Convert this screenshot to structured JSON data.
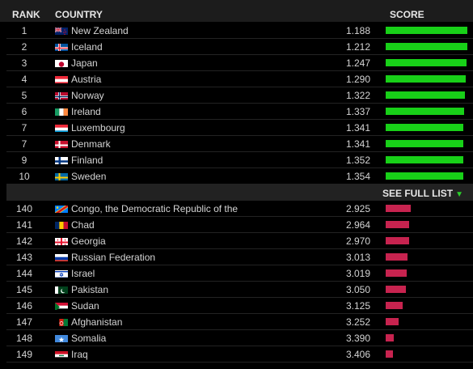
{
  "headers": {
    "rank": "RANK",
    "country": "COUNTRY",
    "score": "SCORE"
  },
  "see_full_list": "SEE FULL LIST",
  "colors": {
    "top_bar": "#18d018",
    "bottom_bar": "#c7234f"
  },
  "top": [
    {
      "rank": "1",
      "country": "New Zealand",
      "score": "1.188",
      "flag": "nz",
      "fill": 1.0
    },
    {
      "rank": "2",
      "country": "Iceland",
      "score": "1.212",
      "flag": "is",
      "fill": 1.0
    },
    {
      "rank": "3",
      "country": "Japan",
      "score": "1.247",
      "flag": "jp",
      "fill": 0.99
    },
    {
      "rank": "4",
      "country": "Austria",
      "score": "1.290",
      "flag": "at",
      "fill": 0.98
    },
    {
      "rank": "5",
      "country": "Norway",
      "score": "1.322",
      "flag": "no",
      "fill": 0.97
    },
    {
      "rank": "6",
      "country": "Ireland",
      "score": "1.337",
      "flag": "ie",
      "fill": 0.96
    },
    {
      "rank": "7",
      "country": "Luxembourg",
      "score": "1.341",
      "flag": "lu",
      "fill": 0.95
    },
    {
      "rank": "7",
      "country": "Denmark",
      "score": "1.341",
      "flag": "dk",
      "fill": 0.95
    },
    {
      "rank": "9",
      "country": "Finland",
      "score": "1.352",
      "flag": "fi",
      "fill": 0.95
    },
    {
      "rank": "10",
      "country": "Sweden",
      "score": "1.354",
      "flag": "se",
      "fill": 0.95
    }
  ],
  "bottom": [
    {
      "rank": "140",
      "country": "Congo, the Democratic Republic of the",
      "score": "2.925",
      "flag": "cd",
      "fill": 0.31
    },
    {
      "rank": "141",
      "country": "Chad",
      "score": "2.964",
      "flag": "td",
      "fill": 0.29
    },
    {
      "rank": "142",
      "country": "Georgia",
      "score": "2.970",
      "flag": "ge",
      "fill": 0.29
    },
    {
      "rank": "143",
      "country": "Russian Federation",
      "score": "3.013",
      "flag": "ru",
      "fill": 0.27
    },
    {
      "rank": "144",
      "country": "Israel",
      "score": "3.019",
      "flag": "il",
      "fill": 0.26
    },
    {
      "rank": "145",
      "country": "Pakistan",
      "score": "3.050",
      "flag": "pk",
      "fill": 0.25
    },
    {
      "rank": "146",
      "country": "Sudan",
      "score": "3.125",
      "flag": "sd",
      "fill": 0.21
    },
    {
      "rank": "147",
      "country": "Afghanistan",
      "score": "3.252",
      "flag": "af",
      "fill": 0.16
    },
    {
      "rank": "148",
      "country": "Somalia",
      "score": "3.390",
      "flag": "so",
      "fill": 0.1
    },
    {
      "rank": "149",
      "country": "Iraq",
      "score": "3.406",
      "flag": "iq",
      "fill": 0.09
    }
  ]
}
